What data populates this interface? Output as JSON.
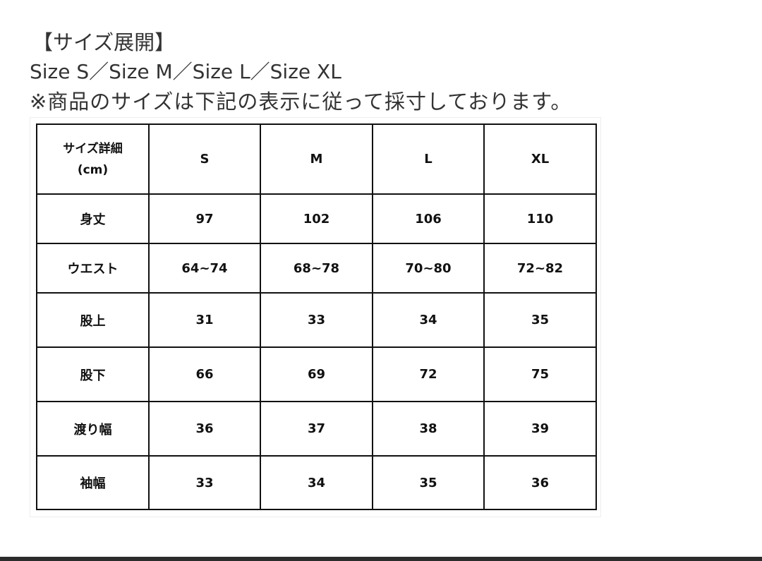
{
  "heading": "【サイズ展開】",
  "sizes_line": "Size S／Size M／Size L／Size XL",
  "note": "※商品のサイズは下記の表示に従って採寸しております。",
  "table": {
    "header": [
      "サイズ詳細\n(cm)",
      "S",
      "M",
      "L",
      "XL"
    ],
    "rows": [
      [
        "身丈",
        "97",
        "102",
        "106",
        "110"
      ],
      [
        "ウエスト",
        "64~74",
        "68~78",
        "70~80",
        "72~82"
      ],
      [
        "股上",
        "31",
        "33",
        "34",
        "35"
      ],
      [
        "股下",
        "66",
        "69",
        "72",
        "75"
      ],
      [
        "渡り幅",
        "36",
        "37",
        "38",
        "39"
      ],
      [
        "袖幅",
        "33",
        "34",
        "35",
        "36"
      ]
    ]
  }
}
